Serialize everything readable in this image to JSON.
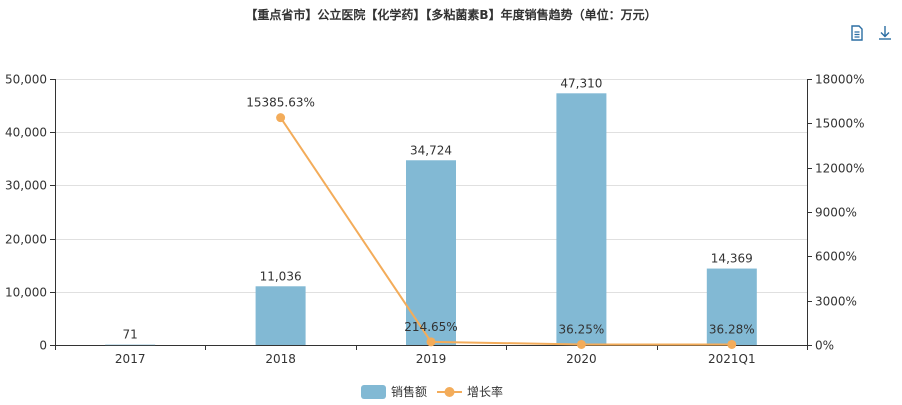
{
  "chart_data": {
    "type": "bar",
    "title": "【重点省市】公立医院【化学药】【多粘菌素B】年度销售趋势（单位：万元）",
    "categories": [
      "2017",
      "2018",
      "2019",
      "2020",
      "2021Q1"
    ],
    "series": [
      {
        "name": "销售额",
        "type": "bar",
        "axis": "left",
        "color": "#82b9d4",
        "values": [
          71,
          11036,
          34724,
          47310,
          14369
        ],
        "labels": [
          "71",
          "11,036",
          "34,724",
          "47,310",
          "14,369"
        ]
      },
      {
        "name": "增长率",
        "type": "line",
        "axis": "right",
        "color": "#f3ac5a",
        "values": [
          null,
          15385.63,
          214.65,
          36.25,
          36.28
        ],
        "labels": [
          "",
          "15385.63%",
          "214.65%",
          "36.25%",
          "36.28%"
        ]
      }
    ],
    "y_left": {
      "ylim": [
        0,
        50000
      ],
      "ticks": [
        0,
        10000,
        20000,
        30000,
        40000,
        50000
      ],
      "tick_labels": [
        "0",
        "10,000",
        "20,000",
        "30,000",
        "40,000",
        "50,000"
      ]
    },
    "y_right": {
      "ylim": [
        0,
        18000
      ],
      "ticks": [
        0,
        3000,
        6000,
        9000,
        12000,
        15000,
        18000
      ],
      "tick_labels": [
        "0%",
        "3000%",
        "6000%",
        "9000%",
        "12000%",
        "15000%",
        "18000%"
      ]
    },
    "grid": true,
    "legend": "bottom-center"
  },
  "toolbox": {
    "data_view_icon": "document-icon",
    "download_icon": "download-icon"
  }
}
